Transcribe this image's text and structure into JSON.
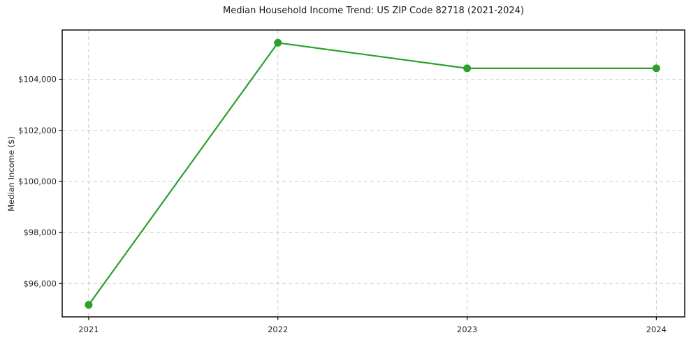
{
  "chart_data": {
    "type": "line",
    "title": "Median Household Income Trend: US ZIP Code 82718 (2021-2024)",
    "xlabel": "",
    "ylabel": "Median Income ($)",
    "x": [
      2021,
      2022,
      2023,
      2024
    ],
    "x_tick_labels": [
      "2021",
      "2022",
      "2023",
      "2024"
    ],
    "values": [
      95170,
      105430,
      104430,
      104430
    ],
    "y_ticks": [
      {
        "value": 96000,
        "label": "$96,000"
      },
      {
        "value": 98000,
        "label": "$98,000"
      },
      {
        "value": 100000,
        "label": "$100,000"
      },
      {
        "value": 102000,
        "label": "$102,000"
      },
      {
        "value": 104000,
        "label": "$104,000"
      }
    ],
    "xlim": [
      2020.86,
      2024.15
    ],
    "ylim": [
      94700,
      105930
    ],
    "grid": "dashed",
    "legend": "none",
    "marker": "circle",
    "colors": {
      "line": "#2ca02c",
      "grid": "#cbcbcb",
      "axis": "#000000",
      "text": "#262626"
    }
  }
}
